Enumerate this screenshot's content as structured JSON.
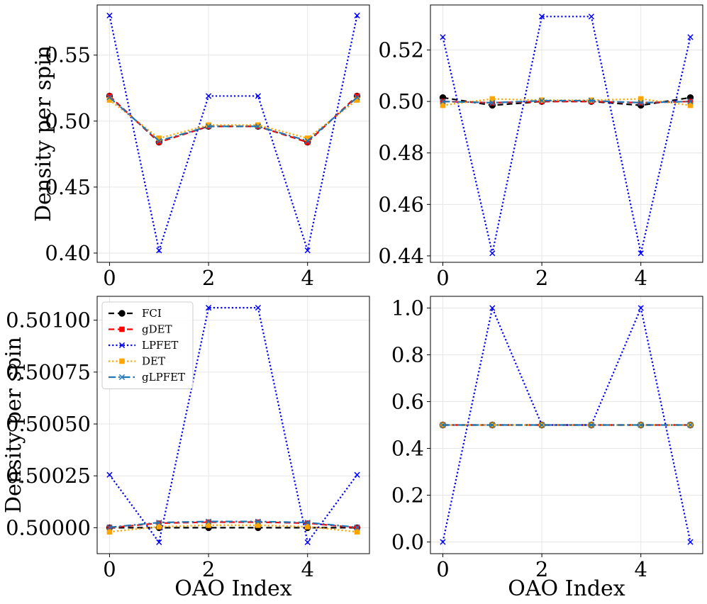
{
  "chart_data": [
    {
      "type": "line",
      "panel": "top-left",
      "x": [
        0,
        1,
        2,
        3,
        4,
        5
      ],
      "xticks": [
        0,
        2,
        4
      ],
      "xtick_labels": [
        "0",
        "2",
        "4"
      ],
      "xlim": [
        -0.25,
        5.25
      ],
      "ylim": [
        0.393,
        0.588
      ],
      "yticks": [
        0.4,
        0.45,
        0.5,
        0.55
      ],
      "ytick_labels": [
        "0.40",
        "0.45",
        "0.50",
        "0.55"
      ],
      "xlabel": "",
      "ylabel": "Density per spin",
      "legend": false,
      "series": [
        {
          "name": "FCI",
          "values": [
            0.519,
            0.484,
            0.496,
            0.496,
            0.484,
            0.519
          ]
        },
        {
          "name": "gDET",
          "values": [
            0.519,
            0.484,
            0.496,
            0.496,
            0.484,
            0.519
          ]
        },
        {
          "name": "LPFET",
          "values": [
            0.58,
            0.402,
            0.519,
            0.519,
            0.402,
            0.58
          ]
        },
        {
          "name": "DET",
          "values": [
            0.516,
            0.487,
            0.497,
            0.497,
            0.487,
            0.516
          ]
        },
        {
          "name": "gLPFET",
          "values": [
            0.518,
            0.485,
            0.496,
            0.496,
            0.485,
            0.518
          ]
        }
      ]
    },
    {
      "type": "line",
      "panel": "top-right",
      "x": [
        0,
        1,
        2,
        3,
        4,
        5
      ],
      "xticks": [
        0,
        2,
        4
      ],
      "xtick_labels": [
        "0",
        "2",
        "4"
      ],
      "xlim": [
        -0.25,
        5.25
      ],
      "ylim": [
        0.4375,
        0.5375
      ],
      "yticks": [
        0.44,
        0.46,
        0.48,
        0.5,
        0.52
      ],
      "ytick_labels": [
        "0.44",
        "0.46",
        "0.48",
        "0.50",
        "0.52"
      ],
      "xlabel": "",
      "ylabel": "",
      "legend": false,
      "series": [
        {
          "name": "FCI",
          "values": [
            0.5015,
            0.4985,
            0.5,
            0.5,
            0.4985,
            0.5015
          ]
        },
        {
          "name": "gDET",
          "values": [
            0.5,
            0.4995,
            0.5,
            0.5,
            0.4995,
            0.5
          ]
        },
        {
          "name": "LPFET",
          "values": [
            0.525,
            0.441,
            0.533,
            0.533,
            0.441,
            0.525
          ]
        },
        {
          "name": "DET",
          "values": [
            0.4985,
            0.501,
            0.5005,
            0.5005,
            0.501,
            0.4985
          ]
        },
        {
          "name": "gLPFET",
          "values": [
            0.5,
            0.4995,
            0.5003,
            0.5003,
            0.4995,
            0.5
          ]
        }
      ]
    },
    {
      "type": "line",
      "panel": "bottom-left",
      "x": [
        0,
        1,
        2,
        3,
        4,
        5
      ],
      "xticks": [
        0,
        2,
        4
      ],
      "xtick_labels": [
        "0",
        "2",
        "4"
      ],
      "xlim": [
        -0.25,
        5.25
      ],
      "ylim": [
        0.499875,
        0.501115
      ],
      "yticks": [
        0.5,
        0.50025,
        0.5005,
        0.50075,
        0.501
      ],
      "ytick_labels": [
        "0.50000",
        "0.50025",
        "0.50050",
        "0.50075",
        "0.50100"
      ],
      "xlabel": "OAO Index",
      "ylabel": "Density per spin",
      "legend": true,
      "legend_position": "top-left",
      "series": [
        {
          "name": "FCI",
          "values": [
            0.5,
            0.5,
            0.5,
            0.5,
            0.5,
            0.5
          ]
        },
        {
          "name": "gDET",
          "values": [
            0.5,
            0.500022,
            0.500027,
            0.500027,
            0.500022,
            0.5
          ]
        },
        {
          "name": "LPFET",
          "values": [
            0.500255,
            0.49993,
            0.50106,
            0.50106,
            0.49993,
            0.500255
          ]
        },
        {
          "name": "DET",
          "values": [
            0.49998,
            0.500005,
            0.500012,
            0.500012,
            0.500005,
            0.49998
          ]
        },
        {
          "name": "gLPFET",
          "values": [
            0.500002,
            0.500025,
            0.50003,
            0.50003,
            0.500025,
            0.500002
          ]
        }
      ]
    },
    {
      "type": "line",
      "panel": "bottom-right",
      "x": [
        0,
        1,
        2,
        3,
        4,
        5
      ],
      "xticks": [
        0,
        2,
        4
      ],
      "xtick_labels": [
        "0",
        "2",
        "4"
      ],
      "xlim": [
        -0.25,
        5.25
      ],
      "ylim": [
        -0.05,
        1.05
      ],
      "yticks": [
        0.0,
        0.2,
        0.4,
        0.6,
        0.8,
        1.0
      ],
      "ytick_labels": [
        "0.0",
        "0.2",
        "0.4",
        "0.6",
        "0.8",
        "1.0"
      ],
      "xlabel": "OAO Index",
      "ylabel": "",
      "legend": false,
      "series": [
        {
          "name": "FCI",
          "values": [
            0.5,
            0.5,
            0.5,
            0.5,
            0.5,
            0.5
          ]
        },
        {
          "name": "gDET",
          "values": [
            0.5,
            0.5,
            0.5,
            0.5,
            0.5,
            0.5
          ]
        },
        {
          "name": "LPFET",
          "values": [
            0.0,
            1.0,
            0.5,
            0.5,
            1.0,
            0.0
          ]
        },
        {
          "name": "DET",
          "values": [
            0.5,
            0.5,
            0.5,
            0.5,
            0.5,
            0.5
          ]
        },
        {
          "name": "gLPFET",
          "values": [
            0.5,
            0.5,
            0.5,
            0.5,
            0.5,
            0.5
          ]
        }
      ]
    }
  ],
  "series_styles": [
    {
      "name": "FCI",
      "color": "#000000",
      "dash": "dashed",
      "marker": "circle"
    },
    {
      "name": "gDET",
      "color": "#ff0000",
      "dash": "dashed",
      "marker": "square"
    },
    {
      "name": "LPFET",
      "color": "#0000ff",
      "dash": "dotted",
      "marker": "x"
    },
    {
      "name": "DET",
      "color": "#ffa500",
      "dash": "dotted",
      "marker": "square"
    },
    {
      "name": "gLPFET",
      "color": "#1f77b4",
      "dash": "dashdot",
      "marker": "x"
    }
  ]
}
